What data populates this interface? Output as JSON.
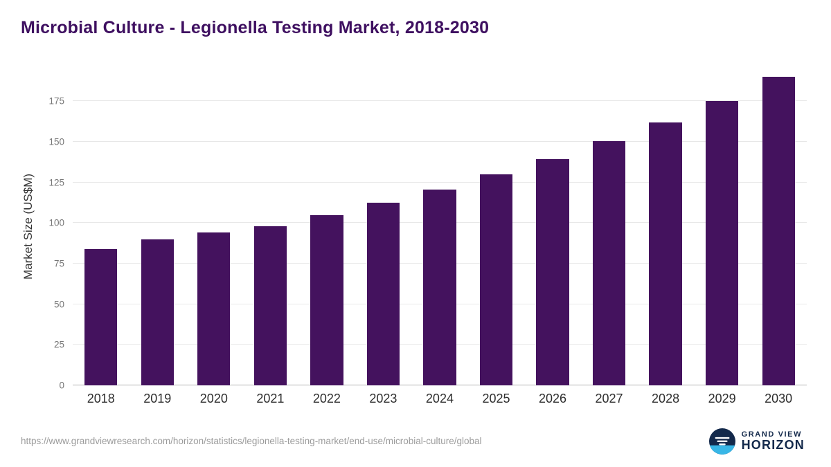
{
  "chart_data": {
    "type": "bar",
    "title": "Microbial Culture - Legionella Testing Market, 2018-2030",
    "ylabel": "Market Size (US$M)",
    "xlabel": "",
    "categories": [
      "2018",
      "2019",
      "2020",
      "2021",
      "2022",
      "2023",
      "2024",
      "2025",
      "2026",
      "2027",
      "2028",
      "2029",
      "2030"
    ],
    "values": [
      84,
      90,
      94,
      98,
      105,
      112.5,
      120.5,
      130,
      139.5,
      150.5,
      162,
      175,
      190
    ],
    "ylim": [
      0,
      196
    ],
    "yticks": [
      0,
      25,
      50,
      75,
      100,
      125,
      150,
      175
    ],
    "grid": "horizontal",
    "legend": "none"
  },
  "colors": {
    "bar": "#44125e",
    "title": "#3e0f60",
    "logo_navy": "#13294b",
    "logo_blue": "#38b6e6"
  },
  "footer": {
    "source_url": "https://www.grandviewresearch.com/horizon/statistics/legionella-testing-market/end-use/microbial-culture/global",
    "logo": {
      "top": "GRAND VIEW",
      "bottom": "HORIZON"
    }
  }
}
